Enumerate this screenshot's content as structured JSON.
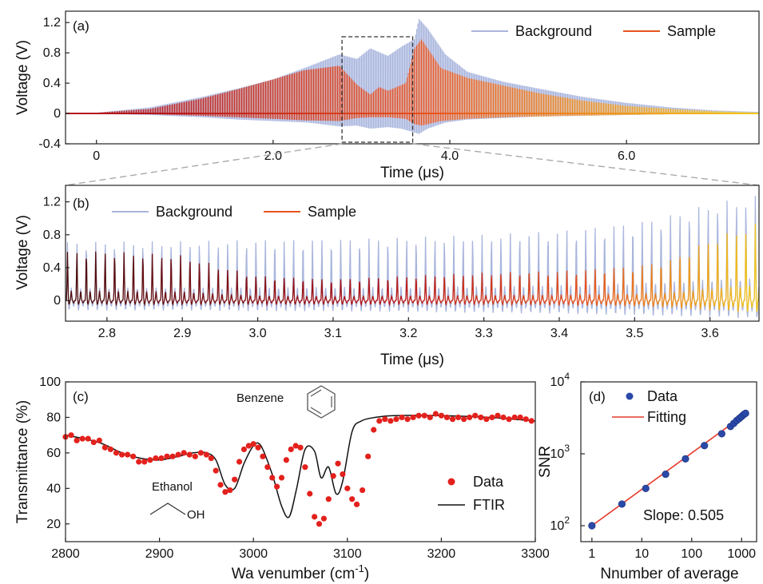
{
  "figure": {
    "colors": {
      "background_trace": "#a9b5dd",
      "sample_dark": "#b4161b",
      "sample_mid": "#e8541e",
      "sample_light": "#f2c91c",
      "sample_legend": "#e8541e",
      "ftir_line": "#111111",
      "data_points": "#e3211c",
      "snr_points": "#2a49a8",
      "snr_fit": "#e43b2c",
      "zoom_box": "#333333",
      "zoom_lines": "#aaaaaa"
    },
    "annotations": {
      "benzene_label": "Benzene",
      "ethanol_label": "Ethanol",
      "oh_label": "OH",
      "slope_text": "Slope:  0.505"
    }
  },
  "chart_data": [
    {
      "panel": "(a)",
      "type": "line",
      "xlabel": "Time (μs)",
      "ylabel": "Voltage (V)",
      "xlim": [
        -0.35,
        7.5
      ],
      "ylim": [
        -0.4,
        1.35
      ],
      "xticks": [
        "0",
        "2.0",
        "4.0",
        "6.0"
      ],
      "xtick_values": [
        0,
        2,
        4,
        6
      ],
      "yticks": [
        "-0.4",
        "0",
        "0.4",
        "0.8",
        "1.2"
      ],
      "ytick_values": [
        -0.4,
        0,
        0.4,
        0.8,
        1.2
      ],
      "zoom_region": [
        2.78,
        3.58
      ],
      "series": [
        {
          "name": "Background",
          "envelope": {
            "t": [
              -0.35,
              0.0,
              0.6,
              1.2,
              1.6,
              2.0,
              2.4,
              2.75,
              2.95,
              3.1,
              3.3,
              3.45,
              3.6,
              3.65,
              3.75,
              3.95,
              4.2,
              4.6,
              5.0,
              5.5,
              6.0,
              6.5,
              7.0,
              7.5
            ],
            "max": [
              0.0,
              0.01,
              0.08,
              0.22,
              0.33,
              0.45,
              0.62,
              0.78,
              0.72,
              0.86,
              0.76,
              0.88,
              0.98,
              1.25,
              1.12,
              0.78,
              0.55,
              0.42,
              0.33,
              0.22,
              0.14,
              0.08,
              0.04,
              0.02
            ],
            "min": [
              0.0,
              -0.005,
              -0.02,
              -0.05,
              -0.08,
              -0.1,
              -0.12,
              -0.17,
              -0.16,
              -0.2,
              -0.18,
              -0.2,
              -0.25,
              -0.27,
              -0.2,
              -0.12,
              -0.08,
              -0.06,
              -0.04,
              -0.03,
              -0.02,
              -0.01,
              -0.01,
              0.0
            ]
          }
        },
        {
          "name": "Sample",
          "envelope": {
            "t": [
              -0.35,
              0.0,
              0.6,
              1.2,
              1.6,
              2.0,
              2.35,
              2.75,
              2.95,
              3.1,
              3.2,
              3.3,
              3.5,
              3.6,
              3.68,
              3.9,
              4.2,
              4.6,
              5.0,
              5.5,
              6.0,
              6.5,
              7.0,
              7.5
            ],
            "max": [
              0.0,
              0.01,
              0.06,
              0.2,
              0.32,
              0.45,
              0.57,
              0.63,
              0.38,
              0.25,
              0.35,
              0.3,
              0.4,
              0.86,
              0.98,
              0.6,
              0.47,
              0.37,
              0.27,
              0.17,
              0.1,
              0.06,
              0.03,
              0.01
            ],
            "min": [
              0.0,
              -0.005,
              -0.01,
              -0.03,
              -0.05,
              -0.07,
              -0.09,
              -0.1,
              -0.06,
              -0.05,
              -0.05,
              -0.05,
              -0.07,
              -0.14,
              -0.16,
              -0.1,
              -0.07,
              -0.05,
              -0.04,
              -0.03,
              -0.02,
              -0.01,
              -0.005,
              0.0
            ]
          }
        }
      ],
      "legend_position": "top-right"
    },
    {
      "panel": "(b)",
      "type": "line",
      "xlabel": "Time (μs)",
      "ylabel": "Voltage (V)",
      "xlim": [
        2.745,
        3.665
      ],
      "ylim": [
        -0.25,
        1.4
      ],
      "xticks": [
        "2.8",
        "2.9",
        "3.0",
        "3.1",
        "3.2",
        "3.3",
        "3.4",
        "3.5",
        "3.6"
      ],
      "xtick_values": [
        2.8,
        2.9,
        3.0,
        3.1,
        3.2,
        3.3,
        3.4,
        3.5,
        3.6
      ],
      "yticks": [
        "0",
        "0.4",
        "0.8",
        "1.2"
      ],
      "ytick_values": [
        0,
        0.4,
        0.8,
        1.2
      ],
      "pulse_period_us": 0.0125,
      "series": [
        {
          "name": "Background",
          "envelope": {
            "t": [
              2.745,
              2.9,
              3.0,
              3.1,
              3.2,
              3.3,
              3.4,
              3.5,
              3.55,
              3.6,
              3.665
            ],
            "peak": [
              0.72,
              0.72,
              0.74,
              0.75,
              0.77,
              0.8,
              0.85,
              0.95,
              1.05,
              1.18,
              1.28
            ],
            "trough": [
              -0.12,
              -0.12,
              -0.13,
              -0.13,
              -0.14,
              -0.15,
              -0.16,
              -0.18,
              -0.19,
              -0.2,
              -0.22
            ]
          }
        },
        {
          "name": "Sample",
          "envelope": {
            "t": [
              2.745,
              2.8,
              2.9,
              2.95,
              3.0,
              3.1,
              3.2,
              3.3,
              3.4,
              3.5,
              3.55,
              3.6,
              3.665
            ],
            "peak": [
              0.6,
              0.6,
              0.55,
              0.42,
              0.3,
              0.26,
              0.3,
              0.34,
              0.36,
              0.42,
              0.5,
              0.75,
              0.95
            ],
            "trough": [
              -0.05,
              -0.05,
              -0.05,
              -0.05,
              -0.05,
              -0.05,
              -0.05,
              -0.05,
              -0.06,
              -0.07,
              -0.09,
              -0.12,
              -0.15
            ]
          }
        }
      ],
      "legend_position": "top-left"
    },
    {
      "panel": "(c)",
      "type": "scatter",
      "xlabel": "Wa venumber (cm",
      "xlabel_sup": "-1",
      "xlabel_close": ")",
      "ylabel": "Transmittance (%)",
      "xlim": [
        2800,
        3300
      ],
      "ylim": [
        10,
        100
      ],
      "xticks": [
        "2800",
        "2900",
        "3000",
        "3100",
        "3200",
        "3300"
      ],
      "xtick_values": [
        2800,
        2900,
        3000,
        3100,
        3200,
        3300
      ],
      "yticks": [
        "20",
        "40",
        "60",
        "80",
        "100"
      ],
      "ytick_values": [
        20,
        40,
        60,
        80,
        100
      ],
      "series": [
        {
          "name": "Data",
          "style": "points",
          "x": [
            2800,
            2806,
            2812,
            2818,
            2824,
            2830,
            2836,
            2842,
            2848,
            2854,
            2860,
            2866,
            2872,
            2878,
            2884,
            2890,
            2896,
            2902,
            2908,
            2914,
            2920,
            2926,
            2932,
            2938,
            2944,
            2950,
            2955,
            2960,
            2965,
            2970,
            2975,
            2980,
            2985,
            2990,
            2995,
            3000,
            3005,
            3010,
            3015,
            3020,
            3025,
            3030,
            3035,
            3040,
            3045,
            3050,
            3055,
            3060,
            3065,
            3070,
            3075,
            3080,
            3085,
            3090,
            3095,
            3100,
            3105,
            3110,
            3116,
            3122,
            3128,
            3134,
            3140,
            3146,
            3152,
            3158,
            3164,
            3170,
            3176,
            3182,
            3188,
            3194,
            3200,
            3206,
            3212,
            3218,
            3224,
            3230,
            3236,
            3242,
            3248,
            3254,
            3260,
            3266,
            3272,
            3278,
            3284,
            3290,
            3296
          ],
          "y": [
            69,
            70,
            67,
            68,
            68,
            66,
            67,
            63,
            62,
            60,
            59,
            59,
            58,
            55,
            55,
            56,
            57,
            57,
            58,
            58,
            59,
            60,
            59,
            58,
            60,
            59,
            57,
            50,
            42,
            38,
            39,
            45,
            55,
            62,
            64,
            65,
            63,
            58,
            52,
            46,
            41,
            46,
            56,
            62,
            64,
            63,
            52,
            37,
            24,
            20,
            23,
            34,
            47,
            54,
            48,
            40,
            34,
            31,
            39,
            58,
            73,
            78,
            79,
            78,
            79,
            80,
            79,
            80,
            81,
            81,
            80,
            82,
            81,
            80,
            79,
            80,
            79,
            80,
            81,
            80,
            79,
            80,
            81,
            80,
            79,
            80,
            80,
            79,
            78
          ]
        },
        {
          "name": "FTIR",
          "style": "line",
          "x": [
            2800,
            2820,
            2840,
            2860,
            2880,
            2900,
            2920,
            2935,
            2950,
            2960,
            2970,
            2980,
            2990,
            3000,
            3008,
            3020,
            3030,
            3038,
            3046,
            3055,
            3065,
            3072,
            3080,
            3088,
            3095,
            3105,
            3115,
            3130,
            3150,
            3200,
            3250,
            3300
          ],
          "y": [
            70,
            68,
            65,
            60,
            57,
            56,
            58,
            60,
            60,
            56,
            42,
            40,
            54,
            64,
            64,
            48,
            30,
            24,
            40,
            62,
            61,
            46,
            52,
            37,
            44,
            72,
            78,
            80,
            81,
            81,
            80,
            78
          ]
        }
      ],
      "legend_position": "lower-right"
    },
    {
      "panel": "(d)",
      "type": "scatter",
      "xlabel": "Nnumber of average",
      "ylabel": "SNR",
      "x_scale": "log",
      "y_scale": "log",
      "xlim": [
        0.6,
        2000
      ],
      "ylim": [
        60,
        10000
      ],
      "xticks": [
        "1",
        "10",
        "100",
        "1000"
      ],
      "xtick_values": [
        1,
        10,
        100,
        1000
      ],
      "yticks": [
        "10",
        "10",
        "10"
      ],
      "ytick_exponents": [
        "2",
        "3",
        "4"
      ],
      "ytick_values": [
        100,
        1000,
        10000
      ],
      "series": [
        {
          "name": "Data",
          "style": "points",
          "x": [
            1,
            4,
            12,
            30,
            75,
            180,
            400,
            600,
            700,
            800,
            900,
            1000,
            1100,
            1200
          ],
          "y": [
            100,
            200,
            330,
            520,
            850,
            1300,
            1900,
            2400,
            2650,
            2900,
            3100,
            3300,
            3500,
            3650
          ]
        },
        {
          "name": "Fitting",
          "style": "line",
          "x": [
            1,
            1200
          ],
          "y": [
            100,
            3600
          ]
        }
      ],
      "legend_position": "top-left"
    }
  ]
}
